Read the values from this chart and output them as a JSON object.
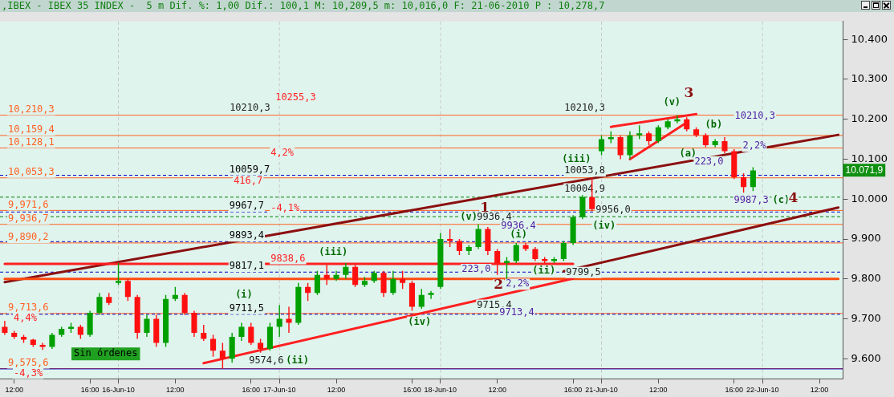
{
  "chart_data": {
    "type": "candlestick",
    "title": ",IBEX - IBEX 35 INDEX -  5 m Dif. %: 1,00 Dif.: 100,1 M: 10,209,5 m: 10,016,0 F: 21-06-2010 P : 10,278,7",
    "categories": [
      null,
      "12:00",
      null,
      null,
      null,
      null,
      null,
      null,
      null,
      "16:00",
      null,
      null,
      "16-Jun-10",
      null,
      null,
      null,
      null,
      null,
      "12:00",
      null,
      null,
      null,
      null,
      null,
      null,
      null,
      "16:00",
      null,
      null,
      "17-Jun-10",
      null,
      null,
      null,
      null,
      null,
      "12:00",
      null,
      null,
      null,
      null,
      null,
      null,
      null,
      "16:00",
      null,
      null,
      "18-Jun-10",
      null,
      null,
      null,
      null,
      null,
      "12:00",
      null,
      null,
      null,
      null,
      null,
      null,
      null,
      "16:00",
      null,
      null,
      "21-Jun-10",
      null,
      null,
      null,
      null,
      null,
      "12:00",
      null,
      null,
      null,
      null,
      null,
      null,
      null,
      "16:00",
      null,
      null,
      "22-Jun-10",
      null,
      null,
      null,
      null,
      null,
      "12:00",
      null,
      null
    ],
    "ohlc": [
      [
        9680,
        9695,
        9660,
        9665
      ],
      [
        9665,
        9670,
        9650,
        9655
      ],
      [
        9655,
        9660,
        9640,
        9648
      ],
      [
        9648,
        9650,
        9630,
        9635
      ],
      [
        9635,
        9640,
        9622,
        9630
      ],
      [
        9630,
        9665,
        9625,
        9660
      ],
      [
        9660,
        9680,
        9655,
        9675
      ],
      [
        9675,
        9690,
        9665,
        9680
      ],
      [
        9680,
        9685,
        9650,
        9660
      ],
      [
        9660,
        9720,
        9655,
        9715
      ],
      [
        9715,
        9765,
        9710,
        9755
      ],
      [
        9755,
        9765,
        9735,
        9740
      ],
      [
        9790,
        9840,
        9785,
        9795
      ],
      [
        9795,
        9800,
        9745,
        9755
      ],
      [
        9755,
        9760,
        9650,
        9665
      ],
      [
        9665,
        9710,
        9655,
        9700
      ],
      [
        9700,
        9710,
        9630,
        9640
      ],
      [
        9640,
        9760,
        9630,
        9750
      ],
      [
        9750,
        9780,
        9745,
        9760
      ],
      [
        9760,
        9765,
        9710,
        9715
      ],
      [
        9715,
        9720,
        9655,
        9665
      ],
      [
        9665,
        9685,
        9645,
        9650
      ],
      [
        9650,
        9660,
        9605,
        9620
      ],
      [
        9620,
        9640,
        9575,
        9600
      ],
      [
        9600,
        9665,
        9590,
        9655
      ],
      [
        9655,
        9690,
        9645,
        9680
      ],
      [
        9680,
        9690,
        9635,
        9640
      ],
      [
        9640,
        9650,
        9615,
        9625
      ],
      [
        9625,
        9690,
        9620,
        9680
      ],
      [
        9680,
        9735,
        9655,
        9700
      ],
      [
        9700,
        9730,
        9665,
        9690
      ],
      [
        9690,
        9790,
        9685,
        9780
      ],
      [
        9780,
        9790,
        9745,
        9765
      ],
      [
        9765,
        9820,
        9760,
        9810
      ],
      [
        9810,
        9835,
        9785,
        9800
      ],
      [
        9800,
        9820,
        9795,
        9810
      ],
      [
        9810,
        9840,
        9800,
        9830
      ],
      [
        9830,
        9835,
        9780,
        9785
      ],
      [
        9785,
        9805,
        9780,
        9795
      ],
      [
        9795,
        9820,
        9790,
        9815
      ],
      [
        9815,
        9820,
        9755,
        9765
      ],
      [
        9765,
        9820,
        9760,
        9800
      ],
      [
        9800,
        9820,
        9775,
        9790
      ],
      [
        9790,
        9795,
        9720,
        9730
      ],
      [
        9730,
        9775,
        9725,
        9760
      ],
      [
        9760,
        9770,
        9750,
        9765
      ],
      [
        9780,
        9915,
        9775,
        9900
      ],
      [
        9900,
        9925,
        9880,
        9895
      ],
      [
        9895,
        9900,
        9860,
        9870
      ],
      [
        9870,
        9885,
        9860,
        9880
      ],
      [
        9880,
        9936,
        9875,
        9925
      ],
      [
        9925,
        9930,
        9860,
        9870
      ],
      [
        9870,
        9875,
        9810,
        9840
      ],
      [
        9840,
        9855,
        9800,
        9845
      ],
      [
        9845,
        9890,
        9840,
        9885
      ],
      [
        9885,
        9890,
        9870,
        9875
      ],
      [
        9875,
        9880,
        9845,
        9850
      ],
      [
        9850,
        9855,
        9840,
        9845
      ],
      [
        9845,
        9855,
        9840,
        9850
      ],
      [
        9850,
        9895,
        9845,
        9890
      ],
      [
        9890,
        9960,
        9885,
        9955
      ],
      [
        9955,
        10010,
        9950,
        10005
      ],
      [
        10005,
        10054,
        9970,
        9975
      ],
      [
        10120,
        10160,
        10110,
        10150
      ],
      [
        10150,
        10170,
        10140,
        10155
      ],
      [
        10155,
        10160,
        10100,
        10110
      ],
      [
        10110,
        10170,
        10100,
        10160
      ],
      [
        10160,
        10185,
        10150,
        10165
      ],
      [
        10165,
        10170,
        10135,
        10145
      ],
      [
        10145,
        10185,
        10140,
        10180
      ],
      [
        10180,
        10200,
        10175,
        10195
      ],
      [
        10195,
        10210,
        10190,
        10200
      ],
      [
        10200,
        10205,
        10170,
        10175
      ],
      [
        10175,
        10180,
        10155,
        10160
      ],
      [
        10160,
        10165,
        10130,
        10135
      ],
      [
        10135,
        10150,
        10130,
        10145
      ],
      [
        10145,
        10155,
        10115,
        10120
      ],
      [
        10120,
        10125,
        10050,
        10055
      ],
      [
        10055,
        10065,
        10016,
        10030
      ],
      [
        10030,
        10080,
        10020,
        10071.9
      ],
      null,
      null,
      null,
      null,
      null,
      null,
      null,
      null,
      null
    ],
    "series": [
      {
        "type": "line",
        "color": "#ff2020",
        "values": [
          null,
          null,
          null,
          null,
          null,
          null,
          null,
          null,
          null,
          null,
          null,
          null,
          null,
          null,
          null,
          null,
          null,
          null,
          null,
          null,
          null,
          9589,
          null,
          null,
          null,
          null,
          null,
          null,
          null,
          null,
          null,
          null,
          null,
          null,
          null,
          null,
          null,
          null,
          null,
          null,
          null,
          null,
          null,
          null,
          null,
          null,
          null,
          null,
          null,
          null,
          null,
          null,
          null,
          null,
          null,
          null,
          null,
          null,
          null,
          null,
          9801,
          null,
          null,
          null,
          null,
          null,
          null,
          null,
          null,
          null,
          null,
          null,
          null,
          null,
          null,
          null,
          null,
          null,
          null,
          null,
          null,
          null,
          null,
          null,
          null,
          null,
          null,
          null,
          null
        ]
      },
      {
        "type": "line",
        "color": "#ff2020",
        "values": [
          9838,
          null,
          null,
          null,
          null,
          null,
          null,
          null,
          null,
          null,
          null,
          null,
          null,
          null,
          null,
          null,
          null,
          null,
          null,
          null,
          null,
          null,
          null,
          null,
          null,
          null,
          null,
          null,
          null,
          null,
          null,
          null,
          null,
          null,
          null,
          null,
          null,
          null,
          null,
          null,
          null,
          null,
          null,
          null,
          null,
          null,
          null,
          null,
          null,
          null,
          null,
          null,
          null,
          null,
          null,
          null,
          null,
          null,
          null,
          null,
          9838,
          null,
          null,
          null,
          null,
          null,
          null,
          null,
          null,
          null,
          null,
          null,
          null,
          null,
          null,
          null,
          null,
          null,
          null,
          null,
          null,
          null,
          null,
          null,
          null,
          null,
          null,
          null,
          null
        ]
      },
      {
        "type": "line",
        "color": "#ff4a10",
        "values": [
          9800,
          null,
          null,
          null,
          null,
          null,
          null,
          null,
          null,
          null,
          null,
          null,
          null,
          null,
          null,
          null,
          null,
          null,
          null,
          null,
          null,
          null,
          null,
          null,
          null,
          null,
          null,
          null,
          null,
          null,
          null,
          null,
          null,
          null,
          null,
          null,
          null,
          null,
          null,
          null,
          null,
          null,
          null,
          null,
          null,
          null,
          null,
          null,
          null,
          null,
          null,
          null,
          null,
          null,
          null,
          null,
          null,
          null,
          null,
          null,
          null,
          null,
          null,
          null,
          null,
          null,
          null,
          null,
          null,
          null,
          null,
          null,
          null,
          null,
          null,
          null,
          null,
          null,
          null,
          null,
          null,
          null,
          null,
          null,
          null,
          null,
          null,
          null,
          9800
        ]
      },
      {
        "type": "line",
        "color": "#8b1010",
        "values": [
          9792,
          null,
          null,
          null,
          null,
          null,
          null,
          null,
          null,
          null,
          null,
          null,
          null,
          null,
          null,
          null,
          null,
          null,
          null,
          null,
          null,
          null,
          null,
          null,
          null,
          null,
          null,
          null,
          null,
          null,
          null,
          null,
          null,
          null,
          null,
          null,
          null,
          null,
          null,
          null,
          null,
          null,
          null,
          null,
          null,
          null,
          null,
          null,
          null,
          null,
          null,
          null,
          null,
          null,
          null,
          null,
          null,
          null,
          null,
          null,
          null,
          null,
          null,
          null,
          null,
          null,
          null,
          null,
          null,
          null,
          null,
          null,
          null,
          null,
          null,
          null,
          null,
          null,
          null,
          null,
          null,
          null,
          null,
          null,
          null,
          null,
          null,
          null,
          10161
        ]
      },
      {
        "type": "line",
        "color": "#8b1010",
        "values": [
          null,
          null,
          null,
          null,
          null,
          null,
          null,
          null,
          null,
          null,
          null,
          null,
          null,
          null,
          null,
          null,
          null,
          null,
          null,
          null,
          null,
          null,
          null,
          null,
          null,
          null,
          null,
          null,
          null,
          null,
          null,
          null,
          null,
          null,
          null,
          null,
          null,
          null,
          null,
          null,
          null,
          null,
          null,
          null,
          null,
          null,
          null,
          null,
          null,
          null,
          null,
          null,
          null,
          null,
          null,
          null,
          null,
          null,
          null,
          9819,
          null,
          null,
          null,
          null,
          null,
          null,
          null,
          null,
          null,
          null,
          null,
          null,
          null,
          null,
          null,
          null,
          null,
          null,
          null,
          null,
          null,
          null,
          null,
          null,
          null,
          null,
          null,
          null,
          9979
        ]
      },
      {
        "type": "line",
        "color": "#ff2020",
        "values": [
          null,
          null,
          null,
          null,
          null,
          null,
          null,
          null,
          null,
          null,
          null,
          null,
          null,
          null,
          null,
          null,
          null,
          null,
          null,
          null,
          null,
          null,
          null,
          null,
          null,
          null,
          null,
          null,
          null,
          null,
          null,
          null,
          null,
          null,
          null,
          null,
          null,
          null,
          null,
          null,
          null,
          null,
          null,
          null,
          null,
          null,
          null,
          null,
          null,
          null,
          null,
          null,
          null,
          null,
          null,
          null,
          null,
          null,
          null,
          null,
          null,
          null,
          null,
          null,
          10181,
          null,
          null,
          null,
          null,
          null,
          null,
          null,
          null,
          10213,
          null,
          null,
          null,
          null,
          null,
          null,
          null,
          null,
          null,
          null,
          null,
          null,
          null,
          null,
          null
        ]
      },
      {
        "type": "line",
        "color": "#ff2020",
        "values": [
          null,
          null,
          null,
          null,
          null,
          null,
          null,
          null,
          null,
          null,
          null,
          null,
          null,
          null,
          null,
          null,
          null,
          null,
          null,
          null,
          null,
          null,
          null,
          null,
          null,
          null,
          null,
          null,
          null,
          null,
          null,
          null,
          null,
          null,
          null,
          null,
          null,
          null,
          null,
          null,
          null,
          null,
          null,
          null,
          null,
          null,
          null,
          null,
          null,
          null,
          null,
          null,
          null,
          null,
          null,
          null,
          null,
          null,
          null,
          null,
          null,
          null,
          null,
          null,
          null,
          null,
          10100,
          null,
          null,
          null,
          null,
          null,
          10192,
          null,
          null,
          null,
          null,
          null,
          null,
          null,
          null,
          null,
          null,
          null,
          null,
          null,
          null,
          null,
          null
        ]
      }
    ],
    "ylim": [
      9550,
      10445
    ],
    "yticks": [
      {
        "value": 9600,
        "label": "9.600"
      },
      {
        "value": 9700,
        "label": "9.700"
      },
      {
        "value": 9800,
        "label": "9.800"
      },
      {
        "value": 9900,
        "label": "9.900"
      },
      {
        "value": 10000,
        "label": "10.000"
      },
      {
        "value": 10100,
        "label": "10.100"
      },
      {
        "value": 10200,
        "label": "10.200"
      },
      {
        "value": 10300,
        "label": "10.300"
      },
      {
        "value": 10400,
        "label": "10.400"
      }
    ],
    "grid": false,
    "ref_lines": [
      {
        "axis": "x",
        "value": "16-Jun-10",
        "color": "#c8c8c8",
        "line_style": "dashed"
      },
      {
        "axis": "x",
        "value": "17-Jun-10",
        "color": "#c8c8c8",
        "line_style": "dashed"
      },
      {
        "axis": "x",
        "value": "18-Jun-10",
        "color": "#c8c8c8",
        "line_style": "dashed"
      },
      {
        "axis": "x",
        "value": "21-Jun-10",
        "color": "#c8c8c8",
        "line_style": "dashed"
      },
      {
        "axis": "x",
        "value": "22-Jun-10",
        "color": "#c8c8c8",
        "line_style": "dashed"
      },
      {
        "axis": "y",
        "value": 10210.3,
        "label": "10,210,3",
        "color": "#ff6020",
        "line_style": "solid"
      },
      {
        "axis": "y",
        "value": 10159.4,
        "label": "10,159,4",
        "color": "#ff6020",
        "line_style": "solid"
      },
      {
        "axis": "y",
        "value": 10128.1,
        "label": "10,128,1",
        "color": "#ff6020",
        "line_style": "solid"
      },
      {
        "axis": "y",
        "value": 10053.3,
        "label": "10,053,3",
        "color": "#ff6020",
        "line_style": "solid"
      },
      {
        "axis": "y",
        "value": 9971.6,
        "label": "9,971,6",
        "color": "#ff6020",
        "line_style": "solid"
      },
      {
        "axis": "y",
        "value": 9936.7,
        "label": "9,936,7",
        "color": "#ff6020",
        "line_style": "solid"
      },
      {
        "axis": "y",
        "value": 9890.2,
        "label": "9,890,2",
        "color": "#ff6020",
        "line_style": "solid"
      },
      {
        "axis": "y",
        "value": 9713.6,
        "label": "9,713,6",
        "color": "#ff6020",
        "line_style": "solid"
      },
      {
        "axis": "y",
        "value": 9575.6,
        "label": "9,575,6",
        "color": "#ff6020",
        "line_style": "solid"
      },
      {
        "axis": "y",
        "value": 10059.7,
        "label": "10059,7",
        "color": "#0000c0",
        "line_style": "dashed"
      },
      {
        "axis": "y",
        "value": 9967.7,
        "label": "9967,7",
        "color": "#0000c0",
        "line_style": "dashed"
      },
      {
        "axis": "y",
        "value": 9893.4,
        "label": "9893,4",
        "color": "#0000c0",
        "line_style": "dashed"
      },
      {
        "axis": "y",
        "value": 9817.1,
        "label": "9817,1",
        "color": "#0000c0",
        "line_style": "dashed"
      },
      {
        "axis": "y",
        "value": 9711.5,
        "label": "9711,5",
        "color": "#0000c0",
        "line_style": "dashed"
      },
      {
        "axis": "y",
        "value": 9574.6,
        "color": "#0000c0",
        "line_style": "solid"
      },
      {
        "axis": "y",
        "value": 10004.9,
        "color": "#008000",
        "line_style": "dashed"
      },
      {
        "axis": "y",
        "value": 9956.0,
        "color": "#008000",
        "line_style": "dashed"
      }
    ],
    "annotations": [
      "10255,3",
      "4,2%",
      "416,7",
      "-4,1%",
      "9838,6",
      "4,4%",
      "-4,3%",
      "Sin órdenes",
      "10210,3",
      "10210,3",
      "(v)",
      "3",
      "(b)",
      "(a)",
      "223,0",
      "2,2%",
      "10210,3",
      "9987,3",
      "(c)",
      "4",
      "(iii)",
      "10053,8",
      "10004,9",
      "9956,0",
      "(iv)",
      "1",
      "(v)",
      "9936,4",
      "9936,4",
      "(i)",
      "223,0",
      "2",
      "2,2%",
      "(ii)",
      "9799,5",
      "9715,4",
      "9713,4",
      "(iii)",
      "(iv)",
      "(i)",
      "(ii)",
      "9574,6",
      "10.071,9"
    ]
  }
}
